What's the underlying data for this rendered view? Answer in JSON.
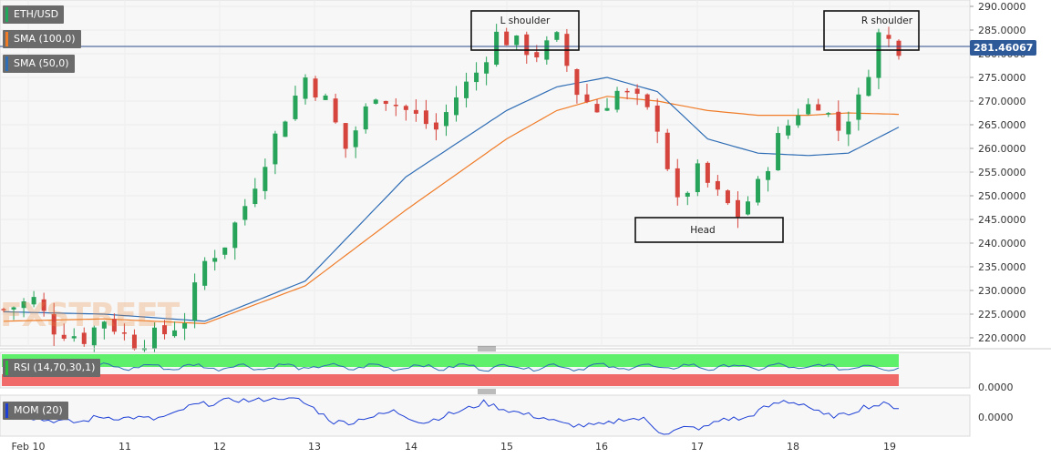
{
  "legends": {
    "price": {
      "label": "ETH/USD",
      "color": "#22a85a"
    },
    "sma100": {
      "label": "SMA (100,0)",
      "color": "#f07c28"
    },
    "sma50": {
      "label": "SMA (50,0)",
      "color": "#2f6db5"
    },
    "rsi": {
      "label": "RSI (14,70,30,1)",
      "color": "#27c23a"
    },
    "mom": {
      "label": "MOM (20)",
      "color": "#1d3fd6"
    }
  },
  "current_price": "281.46067",
  "watermark": {
    "main": "FX",
    "accent": "STREET"
  },
  "annotations": {
    "left_shoulder": "L shoulder",
    "right_shoulder": "R shoulder",
    "head": "Head"
  },
  "x_ticks": [
    "Feb 10",
    "11",
    "12",
    "13",
    "14",
    "15",
    "16",
    "17",
    "18",
    "19"
  ],
  "y_ticks": [
    "290.0000",
    "285.0000",
    "280.0000",
    "275.0000",
    "270.0000",
    "265.0000",
    "260.0000",
    "255.0000",
    "250.0000",
    "245.0000",
    "240.0000",
    "235.0000",
    "230.0000",
    "225.0000",
    "220.0000"
  ],
  "rsi_tick": "0.0000",
  "mom_tick": "0.0000",
  "colors": {
    "up": "#27a35a",
    "down": "#d6453d",
    "sma50": "#2f6db5",
    "sma100": "#f07c28",
    "mom": "#1d3fd6",
    "rsi": "#2f6db5"
  },
  "chart_data": {
    "type": "candlestick",
    "ylim": [
      218,
      290
    ],
    "x_dates": [
      "Feb 10",
      "11",
      "12",
      "13",
      "14",
      "15",
      "16",
      "17",
      "18",
      "19"
    ],
    "last_price": 281.46,
    "sma50_anchor_points": [
      [
        0,
        225.5
      ],
      [
        10,
        225
      ],
      [
        20,
        223.5
      ],
      [
        30,
        232
      ],
      [
        40,
        254
      ],
      [
        50,
        268
      ],
      [
        55,
        273
      ],
      [
        60,
        275
      ],
      [
        65,
        272
      ],
      [
        70,
        262
      ],
      [
        75,
        259
      ],
      [
        80,
        258.5
      ],
      [
        84,
        259
      ],
      [
        89,
        264.5
      ]
    ],
    "sma100_anchor_points": [
      [
        0,
        223.5
      ],
      [
        10,
        224
      ],
      [
        20,
        223
      ],
      [
        30,
        231
      ],
      [
        40,
        247
      ],
      [
        50,
        262
      ],
      [
        55,
        268
      ],
      [
        60,
        271
      ],
      [
        65,
        270
      ],
      [
        70,
        268
      ],
      [
        75,
        267
      ],
      [
        80,
        267
      ],
      [
        84,
        267.5
      ],
      [
        89,
        267.2
      ]
    ],
    "close_anchor_points": [
      [
        0,
        226
      ],
      [
        3,
        228
      ],
      [
        5,
        222
      ],
      [
        8,
        220
      ],
      [
        10,
        224
      ],
      [
        13,
        219
      ],
      [
        16,
        221
      ],
      [
        18,
        224
      ],
      [
        20,
        236
      ],
      [
        22,
        240
      ],
      [
        24,
        248
      ],
      [
        26,
        258
      ],
      [
        28,
        267
      ],
      [
        30,
        275
      ],
      [
        32,
        270
      ],
      [
        34,
        260
      ],
      [
        37,
        272
      ],
      [
        40,
        268
      ],
      [
        43,
        264
      ],
      [
        45,
        271
      ],
      [
        47,
        276
      ],
      [
        49,
        284
      ],
      [
        51,
        282
      ],
      [
        53,
        280
      ],
      [
        55,
        283
      ],
      [
        57,
        272
      ],
      [
        59,
        268
      ],
      [
        61,
        272
      ],
      [
        63,
        270
      ],
      [
        65,
        265
      ],
      [
        67,
        248
      ],
      [
        69,
        255
      ],
      [
        71,
        250
      ],
      [
        73,
        246
      ],
      [
        75,
        252
      ],
      [
        77,
        262
      ],
      [
        79,
        268
      ],
      [
        81,
        270
      ],
      [
        83,
        264
      ],
      [
        85,
        270
      ],
      [
        87,
        284
      ],
      [
        89,
        281.5
      ]
    ],
    "rsi_range": [
      0,
      100
    ],
    "mom_range": [
      -15,
      15
    ]
  }
}
